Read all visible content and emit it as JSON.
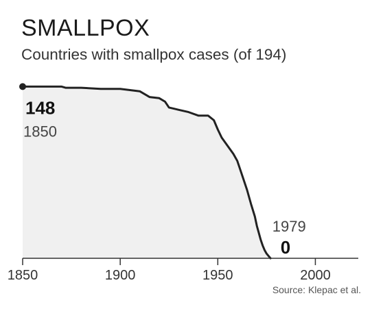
{
  "title": "SMALLPOX",
  "subtitle": "Countries with smallpox cases (of 194)",
  "source": "Source: Klepac et al.",
  "colors": {
    "line": "#222222",
    "area": "#f0f0f0",
    "axis": "#333333",
    "text": "#333333"
  },
  "chart_data": {
    "type": "area",
    "title": "SMALLPOX",
    "subtitle": "Countries with smallpox cases (of 194)",
    "xlabel": "",
    "ylabel": "",
    "xlim": [
      1850,
      2022
    ],
    "ylim": [
      0,
      150
    ],
    "xticks": [
      1850,
      1900,
      1950,
      2000
    ],
    "grid": false,
    "legend": "none",
    "series": [
      {
        "x": [
          1850,
          1870,
          1872,
          1880,
          1890,
          1900,
          1905,
          1910,
          1915,
          1920,
          1923,
          1925,
          1930,
          1935,
          1940,
          1945,
          1948,
          1950,
          1952,
          1955,
          1958,
          1960,
          1962,
          1965,
          1967,
          1969,
          1970,
          1971,
          1972,
          1973,
          1974,
          1975,
          1976,
          1977
        ],
        "y": [
          148,
          148,
          147,
          147,
          146,
          146,
          145,
          144,
          139,
          138,
          135,
          130,
          128,
          126,
          123,
          123,
          119,
          111,
          104,
          97,
          90,
          84,
          74,
          59,
          47,
          36,
          28,
          22,
          16,
          11,
          7,
          4,
          2,
          0
        ]
      }
    ],
    "annotations": [
      {
        "label": "148",
        "year_label": "1850",
        "x": 1850,
        "y": 148
      },
      {
        "label": "0",
        "year_label": "1979",
        "x": 1979,
        "y": 0
      }
    ]
  }
}
